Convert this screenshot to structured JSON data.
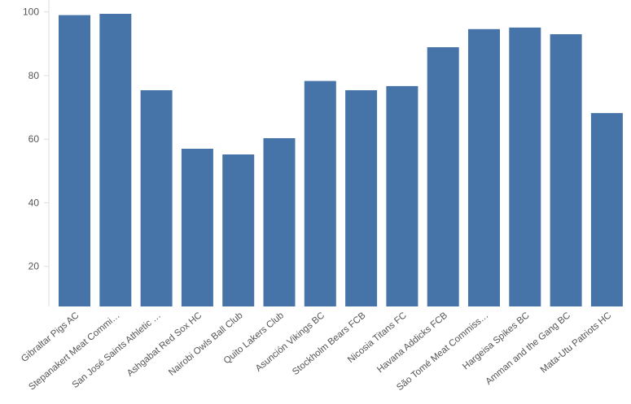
{
  "chart_data": {
    "type": "bar",
    "title": "",
    "xlabel": "",
    "ylabel": "",
    "categories": [
      "Gibraltar Pigs AC",
      "Stepanakert Meat Commi…",
      "San José Saints Athletic …",
      "Ashgabat Red Sox HC",
      "Nairobi Owls Ball Club",
      "Quito Lakers Club",
      "Asunción Vikings BC",
      "Stockholm Bears FCB",
      "Nicosia Titans FC",
      "Havana Addicks FCB",
      "São Tomé Meat Commiss…",
      "Hargeisa Spikes BC",
      "Amman and the Gang BC",
      "Mata-Utu Patriots HC"
    ],
    "values": [
      99.0,
      99.4,
      75.4,
      57.0,
      55.2,
      60.3,
      78.3,
      75.4,
      76.7,
      88.9,
      94.6,
      95.1,
      93.0,
      68.2
    ],
    "ylim": [
      7.4,
      103
    ],
    "yticks": [
      20,
      40,
      60,
      80,
      100
    ],
    "grid": false,
    "legend": null,
    "bar_color": "#4674a8"
  }
}
